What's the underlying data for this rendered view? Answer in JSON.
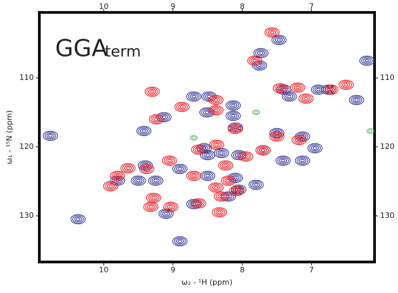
{
  "chart_data": {
    "type": "scatter",
    "title_parts": [
      "GGA",
      "term"
    ],
    "xlabel": "ω₂ - ¹H (ppm)",
    "ylabel": "ω₁ - ¹⁵N (ppm)",
    "xlim": [
      10.93,
      6.09
    ],
    "ylim": [
      100.5,
      136.7
    ],
    "xticks": [
      10,
      9,
      8,
      7
    ],
    "yticks": [
      110,
      120,
      130
    ],
    "series": [
      {
        "color": "#2b2f8f",
        "x": [
          7.47,
          7.73,
          7.75,
          6.2,
          7.4,
          7.32,
          6.9,
          6.75,
          6.35,
          8.7,
          8.48,
          9.13,
          9.42,
          8.51,
          8.13,
          8.13,
          8.1,
          7.5,
          7.13,
          10.77,
          8.55,
          8.3,
          8.05,
          7.7,
          7.41,
          7.13,
          6.95,
          9.4,
          8.9,
          9.5,
          9.25,
          9.8,
          8.5,
          8.1,
          7.8,
          8.05,
          8.2,
          8.7,
          9.1,
          10.37,
          8.9,
          8.5
        ],
        "values": [
          104.5,
          106.4,
          108.2,
          107.5,
          111.7,
          112.7,
          111.7,
          111.7,
          113.2,
          112.7,
          112.7,
          115.7,
          117.7,
          115,
          114,
          115.5,
          117.2,
          118,
          118.5,
          118.4,
          120.2,
          120.9,
          121.2,
          120.5,
          122,
          122,
          120.2,
          122.7,
          123.2,
          124.9,
          124.9,
          124.9,
          124.2,
          124.5,
          125.5,
          126.2,
          127.2,
          128.3,
          129.7,
          130.5,
          133.7,
          121.2
        ]
      },
      {
        "color": "#e8141c",
        "x": [
          7.57,
          7.82,
          7.45,
          7.2,
          6.72,
          6.5,
          7.08,
          9.3,
          8.87,
          8.38,
          8.38,
          9.24,
          8.1,
          7.5,
          7.18,
          8.37,
          8.63,
          8.24,
          7.7,
          7.95,
          9.05,
          9.38,
          9.65,
          9.8,
          9.9,
          8.7,
          8.38,
          8.2,
          8.3,
          8.08,
          9.03,
          9.28,
          9.32,
          8.63,
          8.33
        ],
        "values": [
          103.4,
          107.5,
          111.5,
          111.4,
          111.7,
          111,
          113,
          112,
          114.2,
          113.2,
          114.7,
          116,
          117.4,
          118.5,
          119,
          119.7,
          120.4,
          122.7,
          120.5,
          121.4,
          122,
          123.2,
          123.1,
          124.2,
          125.7,
          124.2,
          125.9,
          124.9,
          127.2,
          126.4,
          128.7,
          127.4,
          128.7,
          128.2,
          129.5
        ]
      },
      {
        "color": "#5cb85c",
        "x": [
          8.7,
          7.8,
          6.15
        ],
        "values": [
          118.7,
          115,
          117.7
        ]
      }
    ]
  }
}
